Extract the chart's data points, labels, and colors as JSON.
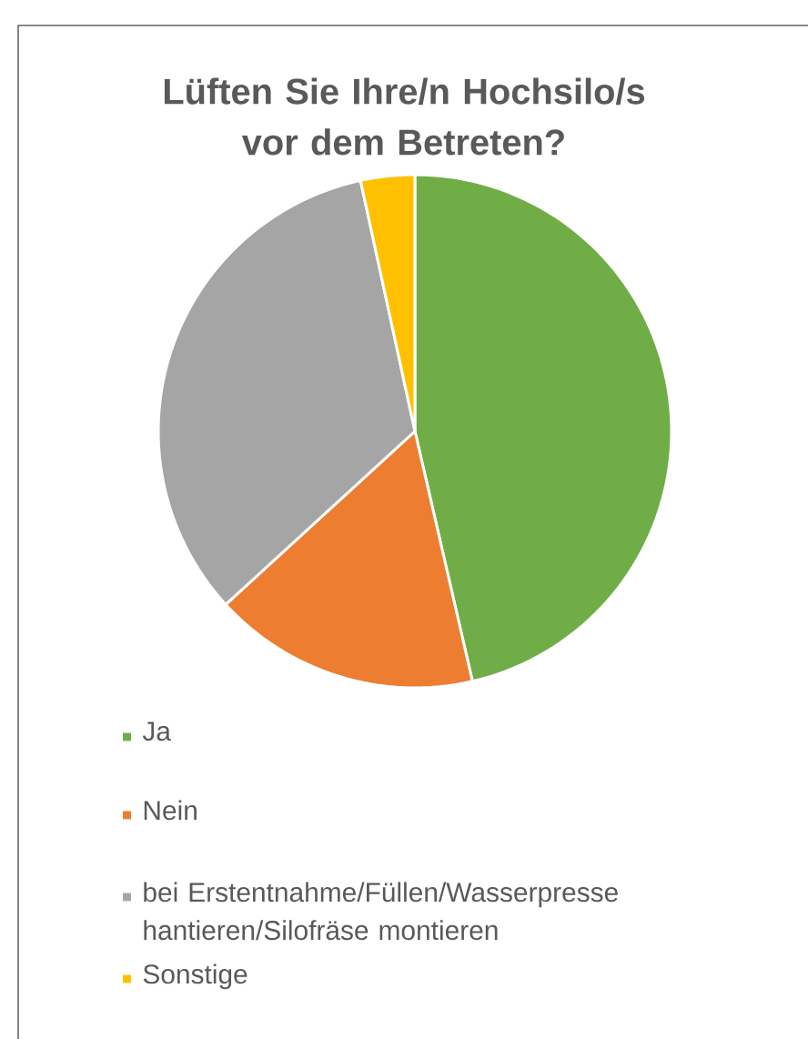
{
  "chart_data": {
    "type": "pie",
    "title": "Lüften Sie Ihre/n Hochsilo/s vor dem Betreten?",
    "categories": [
      "Ja",
      "Nein",
      "bei Erstentnahme/Füllen/Wasserpresse hantieren/Silofräse montieren",
      "Sonstige"
    ],
    "values": [
      46.4,
      16.8,
      33.4,
      3.4
    ],
    "colors": [
      "#70ad47",
      "#ed7d31",
      "#a5a5a5",
      "#ffc000"
    ],
    "legend": "bottom"
  }
}
